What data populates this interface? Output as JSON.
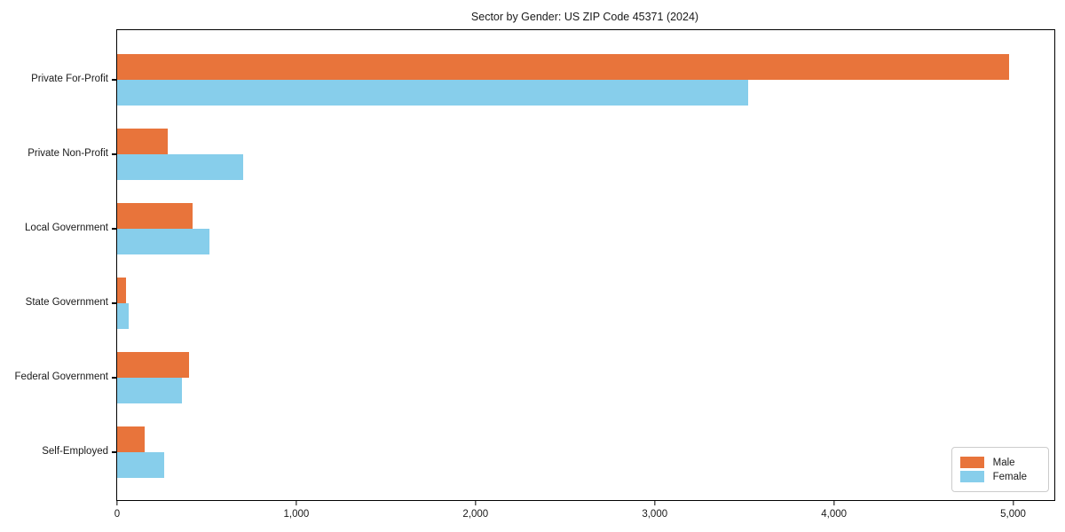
{
  "chart_data": {
    "type": "bar",
    "orientation": "horizontal",
    "title": "Sector by Gender: US ZIP Code 45371 (2024)",
    "categories": [
      "Private For-Profit",
      "Private Non-Profit",
      "Local Government",
      "State Government",
      "Federal Government",
      "Self-Employed"
    ],
    "series": [
      {
        "name": "Male",
        "color": "#E8743B",
        "values": [
          4975,
          280,
          420,
          50,
          400,
          155
        ]
      },
      {
        "name": "Female",
        "color": "#87CEEB",
        "values": [
          3520,
          705,
          515,
          65,
          360,
          260
        ]
      }
    ],
    "x_ticks": [
      0,
      1000,
      2000,
      3000,
      4000,
      5000
    ],
    "x_tick_labels": [
      "0",
      "1,000",
      "2,000",
      "3,000",
      "4,000",
      "5,000"
    ],
    "xlim": [
      0,
      5230
    ],
    "xlabel": "",
    "ylabel": "",
    "grid": false,
    "legend_position": "lower right"
  }
}
